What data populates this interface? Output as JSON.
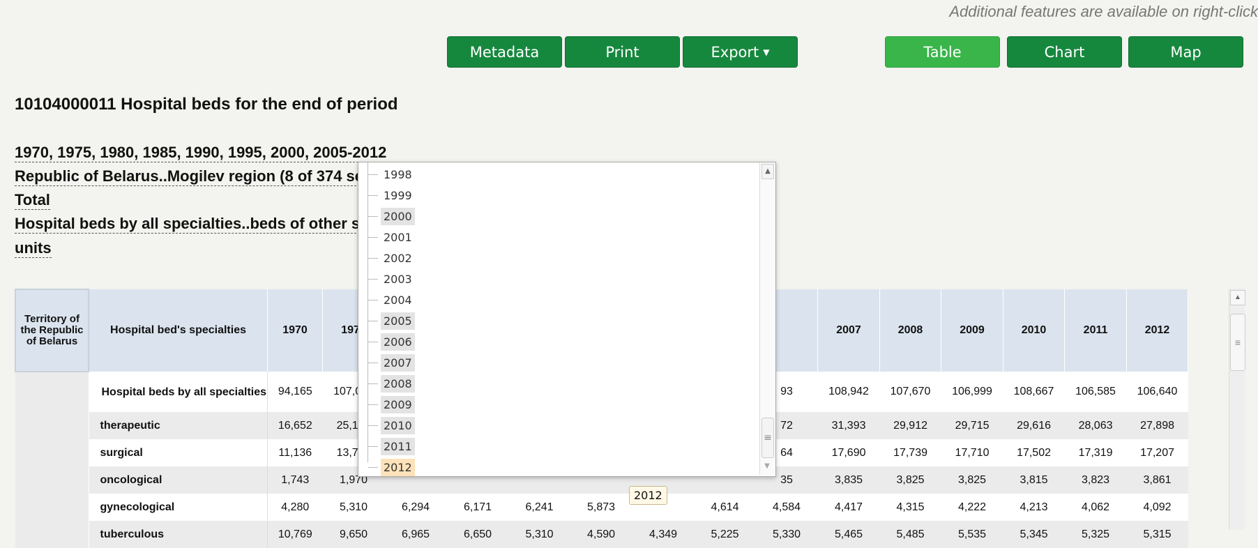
{
  "hint": "Additional features are available on right-click",
  "toolbar": {
    "metadata": "Metadata",
    "print": "Print",
    "export": "Export",
    "table": "Table",
    "chart": "Chart",
    "map": "Map"
  },
  "title": "10104000011 Hospital beds for the end of period",
  "dims": {
    "years": "1970, 1975, 1980, 1985, 1990, 1995, 2000, 2005-2012",
    "territory": "Republic of Belarus..Mogilev region (8 of 374 se",
    "total": "Total",
    "specialties": "Hospital beds by all specialties..beds of other s",
    "units": "units"
  },
  "table": {
    "headers": {
      "territory": "Territory of the Republic of Belarus",
      "specialty": "Hospital bed's specialties",
      "years": [
        "1970",
        "1975",
        "",
        "",
        "",
        "",
        "",
        "",
        "",
        "2007",
        "2008",
        "2009",
        "2010",
        "2011",
        "2012"
      ]
    },
    "rows": [
      {
        "label": "Hospital beds by all specialties",
        "values": [
          "94,165",
          "107,005",
          "",
          "",
          "",
          "",
          "",
          "",
          "93",
          "108,942",
          "107,670",
          "106,999",
          "108,667",
          "106,585",
          "106,640"
        ]
      },
      {
        "label": "therapeutic",
        "values": [
          "16,652",
          "25,160",
          "",
          "",
          "",
          "",
          "",
          "",
          "72",
          "31,393",
          "29,912",
          "29,715",
          "29,616",
          "28,063",
          "27,898"
        ]
      },
      {
        "label": "surgical",
        "values": [
          "11,136",
          "13,794",
          "",
          "",
          "",
          "",
          "",
          "",
          "64",
          "17,690",
          "17,739",
          "17,710",
          "17,502",
          "17,319",
          "17,207"
        ]
      },
      {
        "label": "oncological",
        "values": [
          "1,743",
          "1,970",
          "",
          "",
          "",
          "",
          "",
          "",
          "35",
          "3,835",
          "3,825",
          "3,825",
          "3,815",
          "3,823",
          "3,861"
        ]
      },
      {
        "label": "gynecological",
        "values": [
          "4,280",
          "5,310",
          "6,294",
          "6,171",
          "6,241",
          "5,873",
          "",
          "4,614",
          "4,584",
          "4,417",
          "4,315",
          "4,222",
          "4,213",
          "4,062",
          "4,092"
        ]
      },
      {
        "label": "tuberculous",
        "values": [
          "10,769",
          "9,650",
          "6,965",
          "6,650",
          "5,310",
          "4,590",
          "4,349",
          "5,225",
          "5,330",
          "5,465",
          "5,485",
          "5,535",
          "5,345",
          "5,325",
          "5,315"
        ]
      }
    ]
  },
  "dropdown": {
    "items": [
      {
        "label": "1998",
        "state": "none"
      },
      {
        "label": "1999",
        "state": "none"
      },
      {
        "label": "2000",
        "state": "sel"
      },
      {
        "label": "2001",
        "state": "none"
      },
      {
        "label": "2002",
        "state": "none"
      },
      {
        "label": "2003",
        "state": "none"
      },
      {
        "label": "2004",
        "state": "none"
      },
      {
        "label": "2005",
        "state": "sel"
      },
      {
        "label": "2006",
        "state": "sel"
      },
      {
        "label": "2007",
        "state": "sel"
      },
      {
        "label": "2008",
        "state": "sel"
      },
      {
        "label": "2009",
        "state": "sel"
      },
      {
        "label": "2010",
        "state": "sel"
      },
      {
        "label": "2011",
        "state": "sel"
      },
      {
        "label": "2012",
        "state": "cur"
      }
    ]
  },
  "tooltip": "2012"
}
